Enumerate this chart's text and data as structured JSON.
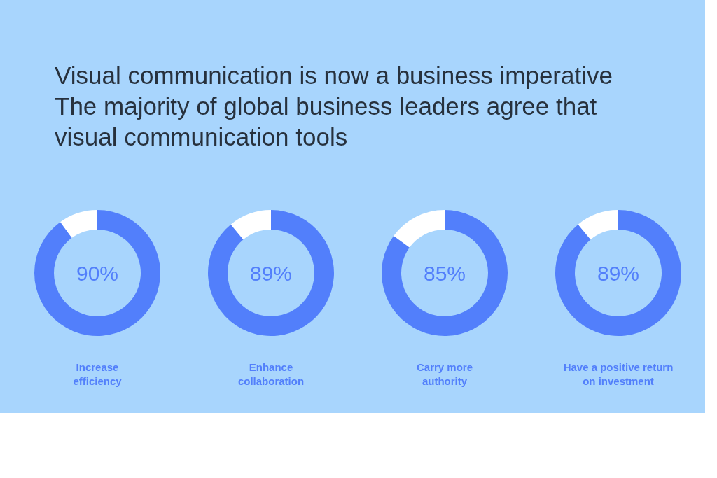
{
  "chart_data": [
    {
      "type": "other",
      "title": "Visual communication is now a business imperative",
      "subtitle": "The majority of global business leaders agree that visual communication tools"
    },
    {
      "type": "donut",
      "categories": [
        "Increase efficiency",
        null
      ],
      "values": [
        90,
        10
      ],
      "colors": [
        "#527ffb",
        "#ffffff"
      ],
      "value_labels": [
        "90%",
        null
      ]
    },
    {
      "type": "donut",
      "categories": [
        "Enhance collaboration",
        null
      ],
      "values": [
        89,
        11
      ],
      "colors": [
        "#527ffb",
        "#ffffff"
      ],
      "value_labels": [
        "89%",
        null
      ]
    },
    {
      "type": "donut",
      "categories": [
        "Carry more authority",
        null
      ],
      "values": [
        85,
        15
      ],
      "colors": [
        "#527ffb",
        "#ffffff"
      ],
      "value_labels": [
        "85%",
        null
      ]
    },
    {
      "type": "donut",
      "categories": [
        "Have a positive return on investment",
        null
      ],
      "values": [
        89,
        11
      ],
      "colors": [
        "#527ffb",
        "#ffffff"
      ],
      "value_labels": [
        "89%",
        null
      ]
    }
  ]
}
